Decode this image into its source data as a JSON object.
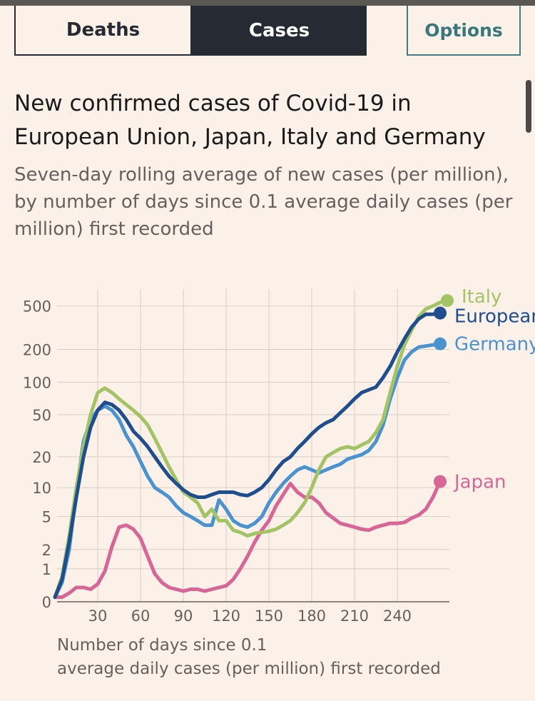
{
  "tabs": [
    {
      "label": "Deaths",
      "active": false
    },
    {
      "label": "Cases",
      "active": true
    }
  ],
  "options_label": "Options",
  "colors": {
    "background": "#fcf1e8",
    "tab_active": "#262a33",
    "options": "#36787c",
    "italy": "#a2c465",
    "europe": "#1f4e8f",
    "germany": "#4a93d1",
    "japan": "#d86595"
  },
  "chart_data": {
    "type": "line",
    "title": "New confirmed cases of Covid-19 in European Union, Japan, Italy and Germany",
    "subtitle": "Seven-day rolling average of new cases (per million), by number of days since 0.1 average daily cases (per million) first recorded",
    "xlabel_lines": [
      "Number of days since 0.1",
      "average daily cases (per million) first recorded"
    ],
    "ylabel": "",
    "scale": "log",
    "xlim": [
      0,
      277
    ],
    "ylim": [
      0,
      600
    ],
    "x_ticks": [
      30,
      60,
      90,
      120,
      150,
      180,
      210,
      240
    ],
    "y_ticks": [
      0,
      1,
      2,
      5,
      10,
      20,
      50,
      100,
      200,
      500
    ],
    "grid": "vertical",
    "legend": "end-of-line labels",
    "series": [
      {
        "name": "Italy",
        "color": "#a2c465",
        "label": "Italy",
        "x": [
          0,
          5,
          10,
          15,
          20,
          25,
          30,
          35,
          40,
          45,
          50,
          55,
          60,
          65,
          70,
          75,
          80,
          85,
          90,
          95,
          100,
          105,
          110,
          115,
          120,
          125,
          130,
          135,
          140,
          145,
          150,
          155,
          160,
          165,
          170,
          175,
          180,
          185,
          190,
          195,
          200,
          205,
          210,
          215,
          220,
          225,
          230,
          235,
          240,
          245,
          250,
          255,
          260,
          265,
          270,
          275
        ],
        "y": [
          0.1,
          0.7,
          3,
          10,
          25,
          50,
          80,
          88,
          80,
          70,
          62,
          55,
          48,
          40,
          30,
          22,
          16,
          12,
          9,
          8,
          7,
          5,
          6,
          4.5,
          4.5,
          3.5,
          3.3,
          3.0,
          3.2,
          3.3,
          3.4,
          3.6,
          4.0,
          4.5,
          5.5,
          7,
          10,
          15,
          20,
          22,
          24,
          25,
          24,
          26,
          28,
          34,
          45,
          80,
          140,
          220,
          300,
          400,
          470,
          500,
          540,
          560
        ]
      },
      {
        "name": "European Union",
        "color": "#1f4e8f",
        "label": "European Union",
        "x": [
          0,
          5,
          10,
          15,
          20,
          25,
          30,
          35,
          40,
          45,
          50,
          55,
          60,
          65,
          70,
          75,
          80,
          85,
          90,
          95,
          100,
          105,
          110,
          115,
          120,
          125,
          130,
          135,
          140,
          145,
          150,
          155,
          160,
          165,
          170,
          175,
          180,
          185,
          190,
          195,
          200,
          205,
          210,
          215,
          220,
          225,
          230,
          235,
          240,
          245,
          250,
          255,
          260,
          265,
          270
        ],
        "y": [
          0.1,
          0.6,
          2.5,
          8,
          20,
          38,
          55,
          65,
          62,
          55,
          45,
          35,
          30,
          25,
          20,
          16,
          13,
          11,
          9.5,
          8.5,
          8,
          8,
          8.5,
          9,
          9,
          9,
          8.5,
          8.3,
          9,
          10,
          12,
          15,
          18,
          20,
          24,
          28,
          33,
          38,
          42,
          45,
          52,
          60,
          70,
          80,
          85,
          90,
          110,
          140,
          190,
          250,
          320,
          380,
          420,
          420,
          430
        ]
      },
      {
        "name": "Germany",
        "color": "#4a93d1",
        "label": "Germany",
        "x": [
          0,
          5,
          10,
          15,
          20,
          25,
          30,
          35,
          40,
          45,
          50,
          55,
          60,
          65,
          70,
          75,
          80,
          85,
          90,
          95,
          100,
          105,
          110,
          115,
          120,
          125,
          130,
          135,
          140,
          145,
          150,
          155,
          160,
          165,
          170,
          175,
          180,
          185,
          190,
          195,
          200,
          205,
          210,
          215,
          220,
          225,
          230,
          235,
          240,
          245,
          250,
          255,
          260,
          265,
          270
        ],
        "y": [
          0.1,
          0.5,
          2,
          9,
          28,
          45,
          55,
          60,
          55,
          45,
          32,
          25,
          18,
          13,
          10,
          9,
          8,
          6.5,
          5.5,
          5,
          4.5,
          4,
          4,
          7.5,
          6,
          4.5,
          4,
          3.8,
          4.2,
          5,
          7,
          9,
          11,
          13,
          15,
          16,
          15,
          14,
          15,
          16,
          17,
          19,
          20,
          21,
          23,
          28,
          40,
          70,
          110,
          160,
          190,
          210,
          215,
          220,
          225
        ]
      },
      {
        "name": "Japan",
        "color": "#d86595",
        "label": "Japan",
        "x": [
          0,
          5,
          10,
          15,
          20,
          25,
          30,
          35,
          40,
          45,
          50,
          55,
          60,
          65,
          70,
          75,
          80,
          85,
          90,
          95,
          100,
          105,
          110,
          115,
          120,
          125,
          130,
          135,
          140,
          145,
          150,
          155,
          160,
          165,
          170,
          175,
          180,
          185,
          190,
          195,
          200,
          205,
          210,
          215,
          220,
          225,
          230,
          235,
          240,
          245,
          250,
          255,
          260,
          265,
          270
        ],
        "y": [
          0.1,
          0.1,
          0.2,
          0.35,
          0.35,
          0.3,
          0.45,
          0.9,
          2.2,
          3.8,
          4.0,
          3.6,
          2.8,
          1.6,
          0.8,
          0.5,
          0.35,
          0.3,
          0.25,
          0.3,
          0.3,
          0.25,
          0.3,
          0.35,
          0.4,
          0.6,
          1.0,
          1.6,
          2.5,
          3.5,
          4.5,
          6.5,
          8.5,
          11,
          9,
          8,
          8,
          7,
          5.5,
          4.8,
          4.2,
          4.0,
          3.8,
          3.6,
          3.5,
          3.8,
          4.0,
          4.2,
          4.2,
          4.3,
          4.8,
          5.2,
          6.0,
          8.0,
          11.5
        ]
      }
    ]
  }
}
